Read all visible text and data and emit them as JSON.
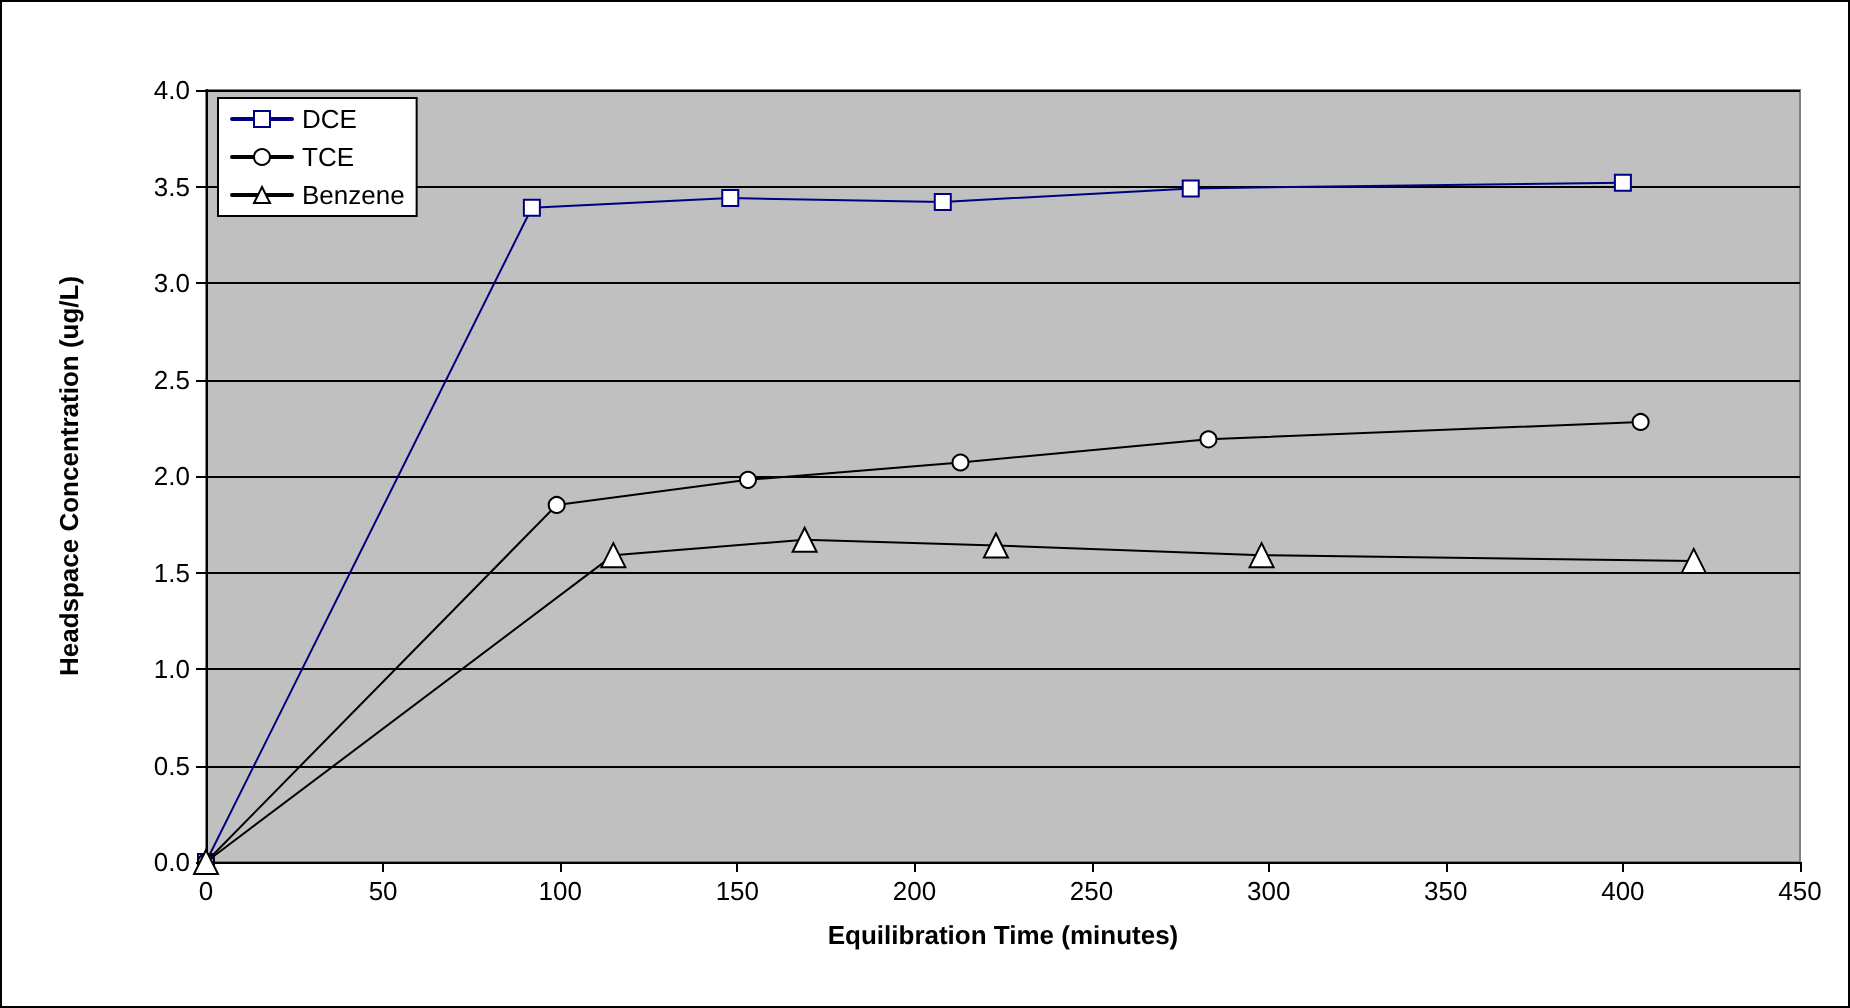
{
  "chart_data": {
    "type": "line",
    "xlabel": "Equilibration Time (minutes)",
    "ylabel": "Headspace Concentration (ug/L)",
    "xlim": [
      0,
      450
    ],
    "xticks": [
      0,
      50,
      100,
      150,
      200,
      250,
      300,
      350,
      400,
      450
    ],
    "ylim": [
      0,
      4
    ],
    "yticks": [
      {
        "value": 0,
        "label": "0.0"
      },
      {
        "value": 0.5,
        "label": "0.5"
      },
      {
        "value": 1,
        "label": "1.0"
      },
      {
        "value": 1.5,
        "label": "1.5"
      },
      {
        "value": 2,
        "label": "2.0"
      },
      {
        "value": 2.5,
        "label": "2.5"
      },
      {
        "value": 3,
        "label": "3.0"
      },
      {
        "value": 3.5,
        "label": "3.5"
      },
      {
        "value": 4,
        "label": "4.0"
      }
    ],
    "grid": "y",
    "legend": "top left",
    "line_style": "solid",
    "series": [
      {
        "name": "DCE",
        "color": "#000080",
        "marker": "square",
        "x": [
          0,
          92,
          148,
          208,
          278,
          400
        ],
        "values": [
          0,
          3.39,
          3.44,
          3.42,
          3.49,
          3.52
        ]
      },
      {
        "name": "TCE",
        "color": "#000000",
        "marker": "circle",
        "x": [
          0,
          99,
          153,
          213,
          283,
          405
        ],
        "values": [
          0,
          1.85,
          1.98,
          2.07,
          2.19,
          2.28
        ]
      },
      {
        "name": "Benzene",
        "color": "#000000",
        "marker": "triangle",
        "x": [
          0,
          115,
          169,
          223,
          298,
          420
        ],
        "values": [
          0,
          1.59,
          1.67,
          1.64,
          1.59,
          1.56
        ]
      }
    ]
  }
}
